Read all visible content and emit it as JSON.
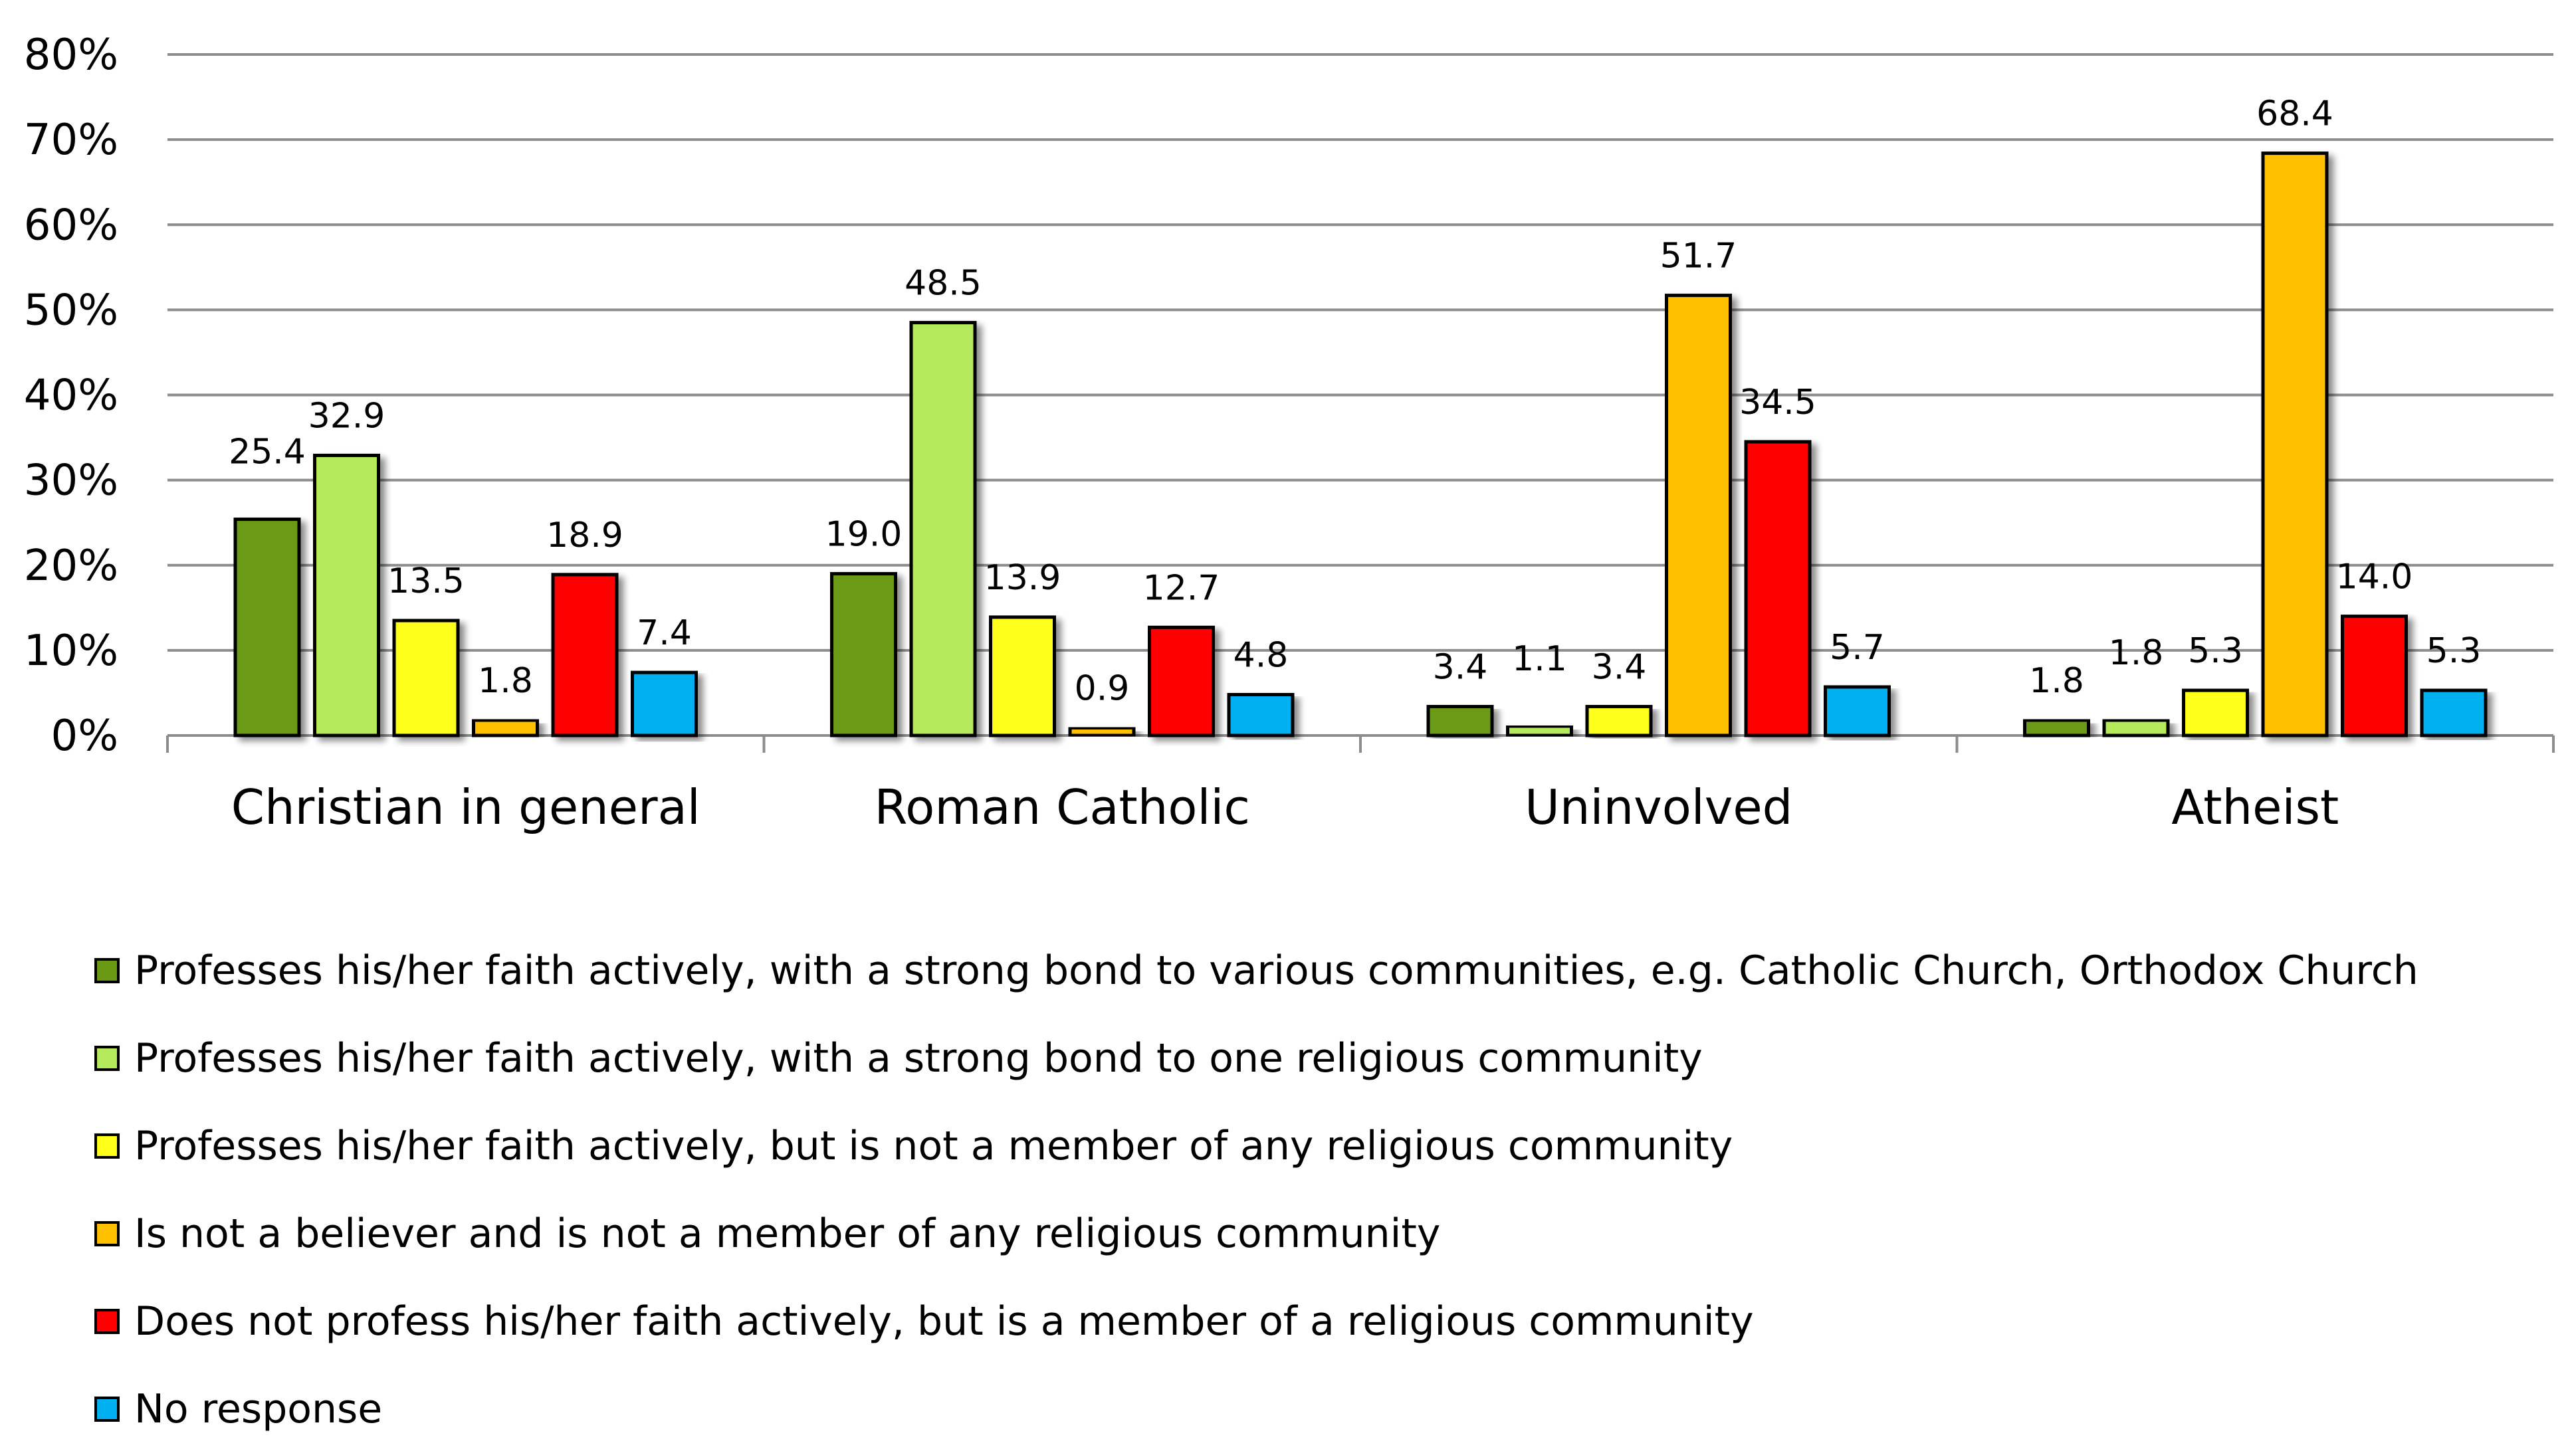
{
  "chart_data": {
    "type": "bar",
    "title": "",
    "xlabel": "",
    "ylabel": "",
    "ylim": [
      0,
      80
    ],
    "yticks": [
      0,
      10,
      20,
      30,
      40,
      50,
      60,
      70,
      80
    ],
    "ytick_labels": [
      "0%",
      "10%",
      "20%",
      "30%",
      "40%",
      "50%",
      "60%",
      "70%",
      "80%"
    ],
    "grid": true,
    "legend_position": "bottom",
    "categories": [
      "Christian in general",
      "Roman Catholic",
      "Uninvolved",
      "Atheist"
    ],
    "series": [
      {
        "name": "Professes his/her faith actively, with a strong bond to various communities, e.g. Catholic Church, Orthodox Church",
        "color": "#6a9a14",
        "values": [
          25.4,
          19.0,
          3.4,
          1.8
        ],
        "labels": [
          "25.4",
          "19.0",
          "3.4",
          "1.8"
        ]
      },
      {
        "name": "Professes his/her faith actively, with a strong bond to one religious community",
        "color": "#b5ea5c",
        "values": [
          32.9,
          48.5,
          1.1,
          1.8
        ],
        "labels": [
          "32.9",
          "48.5",
          "1.1",
          "1.8"
        ]
      },
      {
        "name": "Professes his/her faith actively, but is not a member of any religious community",
        "color": "#ffff1a",
        "values": [
          13.5,
          13.9,
          3.4,
          5.3
        ],
        "labels": [
          "13.5",
          "13.9",
          "3.4",
          "5.3"
        ]
      },
      {
        "name": "Is not a believer and is not a member of any religious community",
        "color": "#ffc000",
        "values": [
          1.8,
          0.9,
          51.7,
          68.4
        ],
        "labels": [
          "1.8",
          "0.9",
          "51.7",
          "68.4"
        ]
      },
      {
        "name": "Does not profess his/her faith actively, but is a member of a religious community",
        "color": "#ff0000",
        "values": [
          18.9,
          12.7,
          34.5,
          14.0
        ],
        "labels": [
          "18.9",
          "12.7",
          "34.5",
          "14.0"
        ]
      },
      {
        "name": "No response",
        "color": "#00b0f0",
        "values": [
          7.4,
          4.8,
          5.7,
          5.3
        ],
        "labels": [
          "7.4",
          "4.8",
          "5.7",
          "5.3"
        ]
      }
    ]
  }
}
